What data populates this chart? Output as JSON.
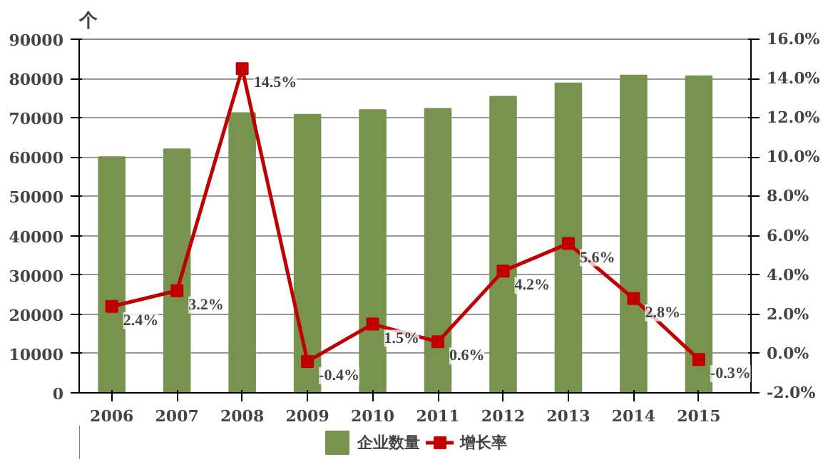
{
  "chart_data": {
    "type": "bar",
    "categories": [
      "2006",
      "2007",
      "2008",
      "2009",
      "2010",
      "2011",
      "2012",
      "2013",
      "2014",
      "2015"
    ],
    "ylabel": "个",
    "series": [
      {
        "name": "企业数量",
        "color": "#77934f",
        "values": [
          60000,
          62000,
          71200,
          70800,
          72000,
          72300,
          75400,
          78800,
          80800,
          80600
        ]
      },
      {
        "name": "增长率",
        "type": "line",
        "axis": "y2",
        "color": "#c00000",
        "marker": "square",
        "values": [
          2.4,
          3.2,
          14.5,
          -0.4,
          1.5,
          0.6,
          4.2,
          5.6,
          2.8,
          -0.3
        ],
        "value_labels": [
          "2.4%",
          "3.2%",
          "14.5%",
          "-0.4%",
          "1.5%",
          "0.6%",
          "4.2%",
          "5.6%",
          "2.8%",
          "-0.3%"
        ]
      }
    ],
    "ylim": [
      0,
      90000
    ],
    "yticks": [
      0,
      10000,
      20000,
      30000,
      40000,
      50000,
      60000,
      70000,
      80000,
      90000
    ],
    "y2lim": [
      -2,
      16
    ],
    "y2ticks": [
      {
        "value": -2,
        "label": "-2.0%"
      },
      {
        "value": 0,
        "label": "0.0%"
      },
      {
        "value": 2,
        "label": "2.0%"
      },
      {
        "value": 4,
        "label": "4.0%"
      },
      {
        "value": 6,
        "label": "6.0%"
      },
      {
        "value": 8,
        "label": "8.0%"
      },
      {
        "value": 10,
        "label": "10.0%"
      },
      {
        "value": 12,
        "label": "12.0%"
      },
      {
        "value": 14,
        "label": "14.0%"
      },
      {
        "value": 16,
        "label": "16.0%"
      }
    ],
    "grid": "y",
    "legend": "bottom"
  }
}
